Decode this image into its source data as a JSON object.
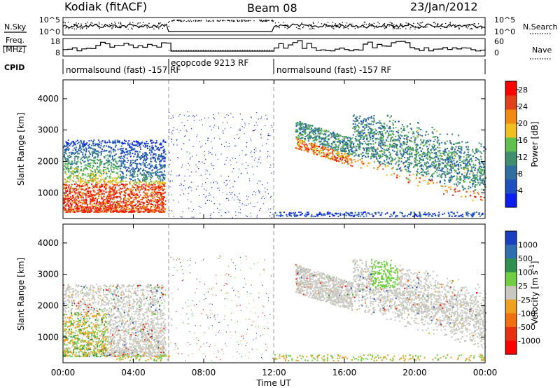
{
  "header": {
    "station": "Kodiak (fitACF)",
    "beam": "Beam 08",
    "date": "23/Jan/2012"
  },
  "left_labels": {
    "nsky": "N.Sky",
    "freq_line1": "Freq.",
    "freq_line2": "[MHz]",
    "cpid": "CPID"
  },
  "right_labels": {
    "nsearch": "N.Search",
    "nave": "Nave"
  },
  "noise_panel": {
    "left_ticks": [
      "10^5",
      "10^0"
    ],
    "right_ticks": [
      "10^5",
      "10^0"
    ]
  },
  "freq_panel": {
    "left_ticks": [
      "18",
      "8"
    ],
    "right_ticks": [
      "60",
      "0"
    ]
  },
  "cpid_segments": [
    {
      "label": "normalsound (fast) -157 RF",
      "start_hour": 0,
      "end_hour": 6
    },
    {
      "label": "ecopcode 9213 RF",
      "start_hour": 6,
      "end_hour": 12
    },
    {
      "label": "normalsound (fast) -157 RF",
      "start_hour": 12,
      "end_hour": 24
    }
  ],
  "colors": {
    "power": [
      "#0a1ff0",
      "#1f4fc0",
      "#2f6fa0",
      "#3f8f6f",
      "#5fbf4f",
      "#f0c020",
      "#f08a10",
      "#e0401a",
      "#ff0000"
    ],
    "velocity": [
      "#1a3fc0",
      "#2f6fb0",
      "#2f8f4f",
      "#6fcf3f",
      "#c8c8c0",
      "#f0a020",
      "#f07010",
      "#e83010",
      "#ff0000"
    ]
  },
  "chart_data": [
    {
      "type": "heatmap",
      "title": "",
      "xlabel": "Time UT",
      "ylabel": "Slant Range [km]",
      "x_ticks": [
        "00:00",
        "04:00",
        "08:00",
        "12:00",
        "16:00",
        "20:00",
        "00:00"
      ],
      "x_range_hours": [
        0,
        24
      ],
      "y_range": [
        180,
        4600
      ],
      "y_ticks": [
        1000,
        2000,
        3000,
        4000
      ],
      "colorbar": {
        "label": "Power [dB]",
        "ticks": [
          "4",
          "8",
          "12",
          "16",
          "20",
          "24",
          "28"
        ],
        "range": [
          0,
          30
        ]
      },
      "echo_regions": [
        {
          "start_hour": 0.0,
          "end_hour": 5.8,
          "range_low_km": 400,
          "range_high_km": 2600,
          "peak_db": 28
        },
        {
          "start_hour": 6.0,
          "end_hour": 12.0,
          "range_low_km": 200,
          "range_high_km": 3600,
          "peak_db": 5
        },
        {
          "start_hour": 13.2,
          "end_hour": 24.0,
          "range_low_km": 600,
          "range_high_km": 3400,
          "peak_db": 24
        }
      ]
    },
    {
      "type": "heatmap",
      "title": "",
      "xlabel": "Time UT",
      "ylabel": "Slant Range [km]",
      "x_ticks": [
        "00:00",
        "04:00",
        "08:00",
        "12:00",
        "16:00",
        "20:00",
        "00:00"
      ],
      "x_range_hours": [
        0,
        24
      ],
      "y_range": [
        180,
        4600
      ],
      "y_ticks": [
        1000,
        2000,
        3000,
        4000
      ],
      "colorbar": {
        "label": "Velocity [m s^-1]",
        "ticks": [
          "1000",
          "500",
          "100",
          "25",
          "-25",
          "-100",
          "-500",
          "-1000"
        ]
      },
      "echo_regions": [
        {
          "start_hour": 0.0,
          "end_hour": 5.8,
          "range_low_km": 400,
          "range_high_km": 2600,
          "dominant": "mixed"
        },
        {
          "start_hour": 13.2,
          "end_hour": 24.0,
          "range_low_km": 600,
          "range_high_km": 3400,
          "dominant": "ground scatter"
        }
      ]
    }
  ]
}
